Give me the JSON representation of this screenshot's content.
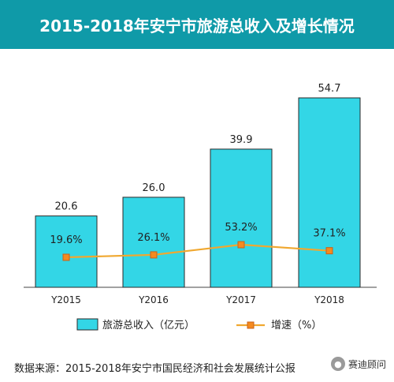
{
  "title": "2015-2018年安宁市旅游总收入及增长情况",
  "source": "数据来源：2015-2018年安宁市国民经济和社会发展统计公报",
  "wechat_label": "赛迪顾问",
  "colors": {
    "title_bg": "#0f9aa8",
    "bar_fill": "#33d6e6",
    "bar_stroke": "#2a2a2a",
    "line": "#f0a830",
    "marker_fill": "#f58a1f",
    "marker_stroke": "#c8621a"
  },
  "chart_data": {
    "type": "bar",
    "categories": [
      "Y2015",
      "Y2016",
      "Y2017",
      "Y2018"
    ],
    "series": [
      {
        "name": "旅游总收入（亿元）",
        "type": "bar",
        "values": [
          20.6,
          26.0,
          39.9,
          54.7
        ],
        "labels": [
          "20.6",
          "26.0",
          "39.9",
          "54.7"
        ]
      },
      {
        "name": "增速（%）",
        "type": "line",
        "values": [
          19.6,
          26.1,
          53.2,
          37.1
        ],
        "labels": [
          "19.6%",
          "26.1%",
          "53.2%",
          "37.1%"
        ]
      }
    ],
    "legend_position": "bottom",
    "grid": false
  }
}
